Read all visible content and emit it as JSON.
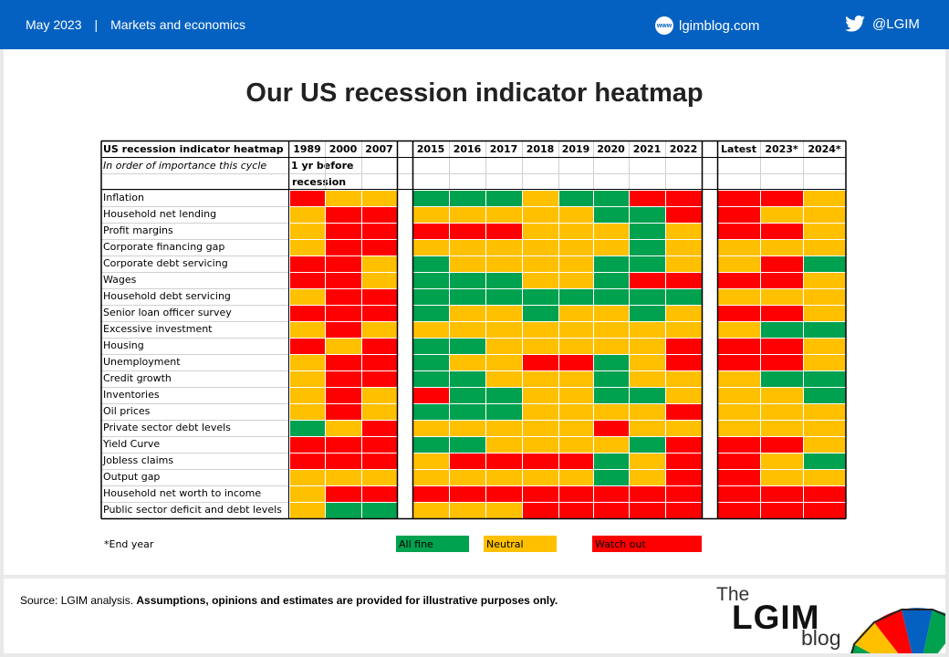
{
  "header": {
    "date": "May 2023",
    "separator": "|",
    "section": "Markets and economics",
    "site_icon": "www",
    "site": "lgimblog.com",
    "twitter": "@LGIM"
  },
  "title": "Our US recession indicator heatmap",
  "colors": {
    "G": "#00a14f",
    "Y": "#ffc000",
    "R": "#ff0000",
    "brand_blue": "#0561c1"
  },
  "chart_data": {
    "type": "heatmap",
    "table_title": "US recession indicator heatmap",
    "subtitle": "In order of importance this cycle",
    "note_line1": "1 yr before",
    "note_line2": "recession",
    "groups": [
      [
        "1989",
        "2000",
        "2007"
      ],
      [
        "2015",
        "2016",
        "2017",
        "2018",
        "2019",
        "2020",
        "2021",
        "2022"
      ],
      [
        "Latest",
        "2023*",
        "2024*"
      ]
    ],
    "legend": [
      {
        "key": "G",
        "label": "All fine"
      },
      {
        "key": "Y",
        "label": "Neutral"
      },
      {
        "key": "R",
        "label": "Watch out"
      }
    ],
    "footnote": "*End year",
    "rows": [
      {
        "label": "Inflation",
        "values": [
          "R",
          "Y",
          "Y",
          "G",
          "G",
          "G",
          "Y",
          "G",
          "G",
          "R",
          "R",
          "R",
          "R",
          "Y"
        ]
      },
      {
        "label": "Household net lending",
        "values": [
          "Y",
          "R",
          "R",
          "Y",
          "Y",
          "Y",
          "Y",
          "Y",
          "G",
          "G",
          "R",
          "R",
          "Y",
          "Y"
        ]
      },
      {
        "label": "Profit margins",
        "values": [
          "Y",
          "R",
          "R",
          "R",
          "R",
          "R",
          "Y",
          "Y",
          "Y",
          "G",
          "Y",
          "R",
          "R",
          "Y"
        ]
      },
      {
        "label": "Corporate financing gap",
        "values": [
          "Y",
          "R",
          "R",
          "Y",
          "Y",
          "Y",
          "Y",
          "Y",
          "Y",
          "G",
          "Y",
          "Y",
          "Y",
          "Y"
        ]
      },
      {
        "label": "Corporate debt servicing",
        "values": [
          "R",
          "R",
          "Y",
          "G",
          "Y",
          "Y",
          "Y",
          "Y",
          "G",
          "G",
          "Y",
          "Y",
          "R",
          "G"
        ]
      },
      {
        "label": "Wages",
        "values": [
          "R",
          "R",
          "Y",
          "G",
          "G",
          "G",
          "Y",
          "Y",
          "G",
          "R",
          "R",
          "R",
          "R",
          "Y"
        ]
      },
      {
        "label": "Household debt servicing",
        "values": [
          "Y",
          "R",
          "R",
          "G",
          "G",
          "G",
          "G",
          "G",
          "G",
          "G",
          "G",
          "Y",
          "Y",
          "Y"
        ]
      },
      {
        "label": "Senior loan officer survey",
        "values": [
          "R",
          "R",
          "R",
          "G",
          "Y",
          "Y",
          "G",
          "Y",
          "Y",
          "G",
          "Y",
          "R",
          "R",
          "Y"
        ]
      },
      {
        "label": "Excessive investment",
        "values": [
          "Y",
          "R",
          "Y",
          "Y",
          "Y",
          "Y",
          "Y",
          "Y",
          "Y",
          "Y",
          "Y",
          "Y",
          "G",
          "G"
        ]
      },
      {
        "label": "Housing",
        "values": [
          "R",
          "Y",
          "R",
          "G",
          "G",
          "Y",
          "Y",
          "Y",
          "Y",
          "Y",
          "R",
          "R",
          "R",
          "Y"
        ]
      },
      {
        "label": "Unemployment",
        "values": [
          "Y",
          "R",
          "R",
          "G",
          "Y",
          "Y",
          "R",
          "R",
          "G",
          "Y",
          "R",
          "R",
          "R",
          "Y"
        ]
      },
      {
        "label": "Credit growth",
        "values": [
          "Y",
          "R",
          "R",
          "G",
          "G",
          "Y",
          "Y",
          "Y",
          "G",
          "Y",
          "Y",
          "Y",
          "G",
          "G"
        ]
      },
      {
        "label": "Inventories",
        "values": [
          "Y",
          "R",
          "Y",
          "R",
          "G",
          "G",
          "Y",
          "Y",
          "G",
          "G",
          "Y",
          "Y",
          "Y",
          "G"
        ]
      },
      {
        "label": "Oil prices",
        "values": [
          "Y",
          "R",
          "Y",
          "G",
          "G",
          "G",
          "Y",
          "Y",
          "Y",
          "Y",
          "R",
          "Y",
          "Y",
          "Y"
        ]
      },
      {
        "label": "Private sector debt levels",
        "values": [
          "G",
          "Y",
          "R",
          "Y",
          "Y",
          "Y",
          "Y",
          "Y",
          "R",
          "Y",
          "Y",
          "Y",
          "Y",
          "Y"
        ]
      },
      {
        "label": "Yield Curve",
        "values": [
          "R",
          "R",
          "R",
          "G",
          "G",
          "Y",
          "Y",
          "Y",
          "Y",
          "G",
          "R",
          "R",
          "R",
          "Y"
        ]
      },
      {
        "label": "Jobless claims",
        "values": [
          "R",
          "R",
          "R",
          "Y",
          "R",
          "R",
          "R",
          "R",
          "G",
          "Y",
          "R",
          "R",
          "Y",
          "G"
        ]
      },
      {
        "label": "Output gap",
        "values": [
          "Y",
          "Y",
          "Y",
          "Y",
          "Y",
          "Y",
          "Y",
          "Y",
          "G",
          "Y",
          "R",
          "R",
          "Y",
          "Y"
        ]
      },
      {
        "label": "Household net worth to income",
        "values": [
          "Y",
          "R",
          "R",
          "R",
          "R",
          "R",
          "R",
          "R",
          "R",
          "R",
          "R",
          "R",
          "R",
          "R"
        ]
      },
      {
        "label": "Public sector deficit and debt levels",
        "values": [
          "Y",
          "G",
          "G",
          "Y",
          "Y",
          "Y",
          "R",
          "R",
          "R",
          "R",
          "R",
          "R",
          "R",
          "R"
        ]
      }
    ]
  },
  "footer": {
    "source_prefix": "Source: LGIM analysis. ",
    "source_bold": "Assumptions,  opinions and estimates are provided for illustrative purposes only.",
    "logo_the": "The",
    "logo_lgim": "LGIM",
    "logo_blog": "blog"
  }
}
